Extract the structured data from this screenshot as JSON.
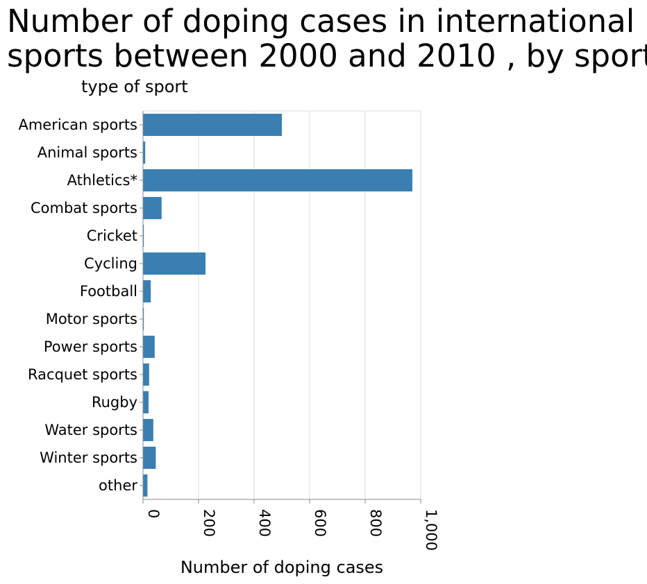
{
  "chart_data": {
    "type": "bar",
    "orientation": "horizontal",
    "title_lines": [
      "Number of doping cases in international",
      "sports between 2000 and 2010 , by sport"
    ],
    "xlabel": "Number of doping cases",
    "ylabel": "type of sport",
    "xlim": [
      0,
      1000
    ],
    "x_ticks": [
      "0",
      "200",
      "400",
      "600",
      "800",
      "1,000"
    ],
    "grid": true,
    "bar_color": "#3a7fb2",
    "categories": [
      "American sports",
      "Animal sports",
      "Athletics*",
      "Combat sports",
      "Cricket",
      "Cycling",
      "Football",
      "Motor sports",
      "Power sports",
      "Racquet sports",
      "Rugby",
      "Water sports",
      "Winter sports",
      "other"
    ],
    "values": [
      500,
      8,
      970,
      67,
      3,
      225,
      28,
      3,
      42,
      22,
      20,
      37,
      46,
      16
    ]
  }
}
